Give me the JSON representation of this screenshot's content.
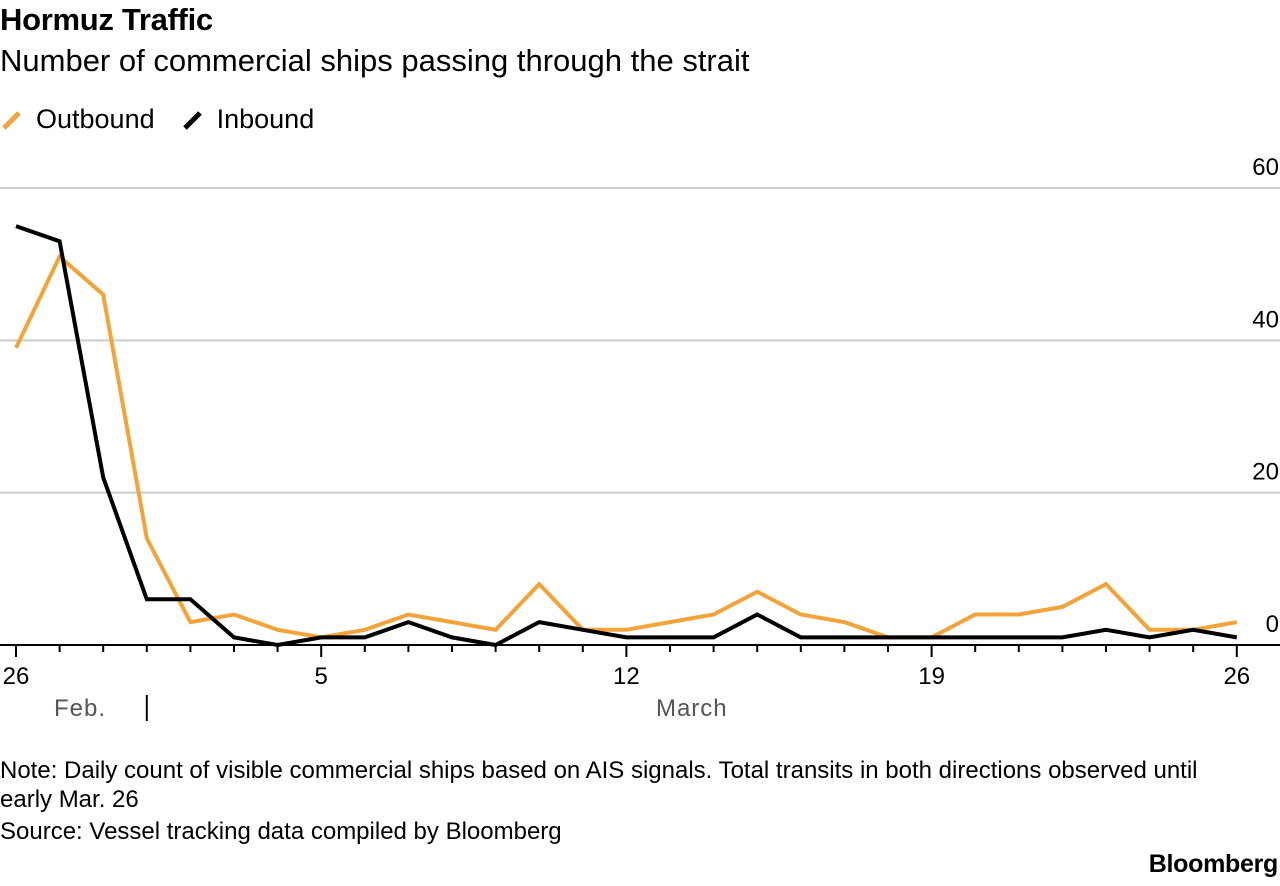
{
  "header": {
    "title": "Hormuz Traffic",
    "subtitle": "Number of commercial ships passing through the strait"
  },
  "legend": {
    "outbound_label": "Outbound",
    "inbound_label": "Inbound"
  },
  "colors": {
    "outbound": "#f2a33a",
    "inbound": "#000000",
    "grid": "#cccccc",
    "axis": "#000000"
  },
  "chart_data": {
    "type": "line",
    "title": "Hormuz Traffic",
    "subtitle": "Number of commercial ships passing through the strait",
    "x": [
      "Feb 26",
      "Feb 27",
      "Feb 28",
      "Mar 1",
      "Mar 2",
      "Mar 3",
      "Mar 4",
      "Mar 5",
      "Mar 6",
      "Mar 7",
      "Mar 8",
      "Mar 9",
      "Mar 10",
      "Mar 11",
      "Mar 12",
      "Mar 13",
      "Mar 14",
      "Mar 15",
      "Mar 16",
      "Mar 17",
      "Mar 18",
      "Mar 19",
      "Mar 20",
      "Mar 21",
      "Mar 22",
      "Mar 23",
      "Mar 24",
      "Mar 25",
      "Mar 26"
    ],
    "series": [
      {
        "name": "Outbound",
        "color": "#f2a33a",
        "values": [
          39,
          51,
          46,
          14,
          3,
          4,
          2,
          1,
          2,
          4,
          3,
          2,
          8,
          2,
          2,
          3,
          4,
          7,
          4,
          3,
          1,
          1,
          4,
          4,
          5,
          8,
          2,
          2,
          3
        ]
      },
      {
        "name": "Inbound",
        "color": "#000000",
        "values": [
          55,
          53,
          22,
          6,
          6,
          1,
          0,
          1,
          1,
          3,
          1,
          0,
          3,
          2,
          1,
          1,
          1,
          4,
          1,
          1,
          1,
          1,
          1,
          1,
          1,
          2,
          1,
          2,
          1
        ]
      }
    ],
    "ylim": [
      0,
      60
    ],
    "yticks": [
      {
        "value": 0,
        "label": "0"
      },
      {
        "value": 20,
        "label": "20"
      },
      {
        "value": 40,
        "label": "40"
      },
      {
        "value": 60,
        "label": "60"
      }
    ],
    "xticks": [
      {
        "index": 0,
        "label": "26"
      },
      {
        "index": 7,
        "label": "5"
      },
      {
        "index": 14,
        "label": "12"
      },
      {
        "index": 21,
        "label": "19"
      },
      {
        "index": 28,
        "label": "26"
      }
    ],
    "month_labels": [
      {
        "label": "Feb.",
        "from": 0,
        "to": 3
      },
      {
        "label": "March",
        "from": 3,
        "to": 28
      }
    ],
    "xlabel": "",
    "ylabel": "",
    "grid": true,
    "legend_position": "top-left"
  },
  "footer": {
    "note": "Note: Daily count of visible commercial ships based on AIS signals. Total transits in both directions observed until early Mar. 26",
    "source": "Source: Vessel tracking data compiled by Bloomberg",
    "brand": "Bloomberg"
  }
}
